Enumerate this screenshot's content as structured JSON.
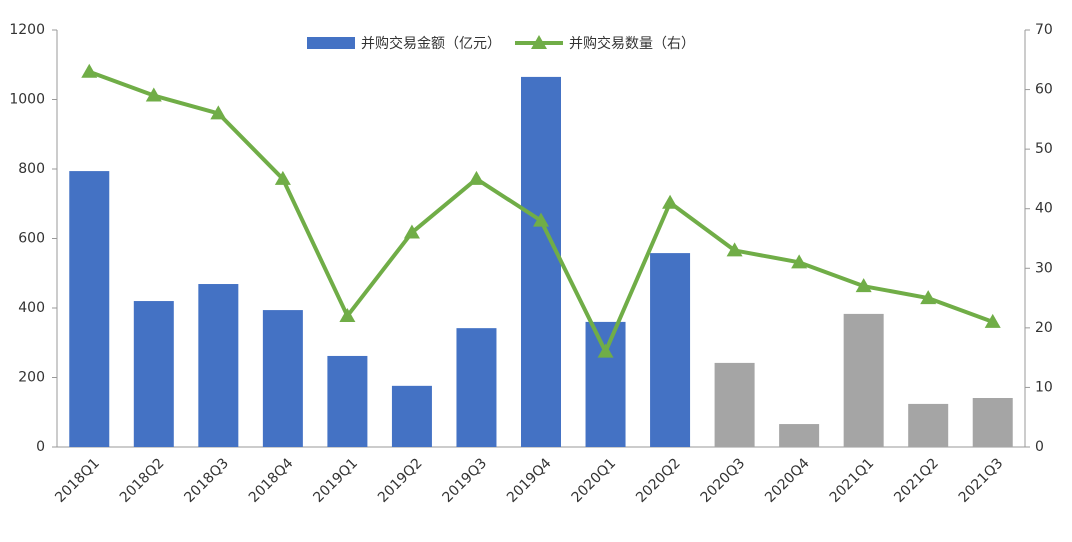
{
  "chart_data": {
    "type": "bar-line",
    "categories": [
      "2018Q1",
      "2018Q2",
      "2018Q3",
      "2018Q4",
      "2019Q1",
      "2019Q2",
      "2019Q3",
      "2019Q4",
      "2020Q1",
      "2020Q2",
      "2020Q3",
      "2020Q4",
      "2021Q1",
      "2021Q2",
      "2021Q3"
    ],
    "series": [
      {
        "name": "并购交易金额（亿元）",
        "type": "bar",
        "color": "#4472c4",
        "colors": [
          "#4472c4",
          "#4472c4",
          "#4472c4",
          "#4472c4",
          "#4472c4",
          "#4472c4",
          "#4472c4",
          "#4472c4",
          "#4472c4",
          "#4472c4",
          "#a5a5a5",
          "#a5a5a5",
          "#a5a5a5",
          "#a5a5a5",
          "#a5a5a5"
        ],
        "values": [
          794,
          420,
          469,
          394,
          262,
          176,
          342,
          1065,
          360,
          558,
          242,
          66,
          383,
          124,
          141
        ]
      },
      {
        "name": "并购交易数量（右）",
        "type": "line",
        "axis": "y2",
        "color": "#70ad47",
        "values": [
          63,
          59,
          56,
          45,
          22,
          36,
          45,
          38,
          16,
          41,
          33,
          31,
          27,
          25,
          21
        ]
      }
    ],
    "ylim": [
      0,
      1200
    ],
    "yticks": [
      0,
      200,
      400,
      600,
      800,
      1000,
      1200
    ],
    "y2lim": [
      0,
      70
    ],
    "y2ticks": [
      0,
      10,
      20,
      30,
      40,
      50,
      60,
      70
    ],
    "legend": "top"
  }
}
